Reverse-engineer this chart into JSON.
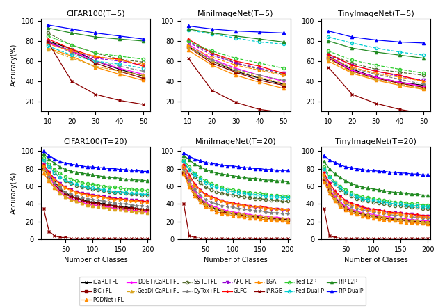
{
  "titles_top": [
    "CIFAR100(T=5)",
    "MiniImageNet(T=5)",
    "TinyImageNet(T=5)"
  ],
  "titles_bottom": [
    "CIFAR100(T=20)",
    "MiniImageNet(T=20)",
    "TinyImageNet(T=20)"
  ],
  "xlabel": "Number of Classes",
  "ylabel": "Accuracy(%)",
  "xticks_top": [
    10,
    20,
    30,
    40,
    50
  ],
  "xticks_bottom": [
    50,
    100,
    150,
    200
  ],
  "methods": [
    "iCaRL+FL",
    "BIC+FL",
    "PODNet+FL",
    "DDE+iCaRL+FL",
    "GeoDI-CaRL+FL",
    "SS-IL+FL",
    "DyTox+FL",
    "AFC-FL",
    "GLFC",
    "LGA",
    "iARGE",
    "Fed-L2P",
    "Fed-Dual P",
    "PIP-L2P",
    "PIP-DualP"
  ],
  "method_styles": {
    "iCaRL+FL": {
      "color": "#000000",
      "marker": "x",
      "ls": "-",
      "mfc": "none"
    },
    "BIC+FL": {
      "color": "#8B0000",
      "marker": "s",
      "ls": "-",
      "mfc": "#8B0000"
    },
    "PODNet+FL": {
      "color": "#FF8C00",
      "marker": "^",
      "ls": "-",
      "mfc": "#FF8C00"
    },
    "DDE+iCaRL+FL": {
      "color": "#FF00FF",
      "marker": "+",
      "ls": "-",
      "mfc": "none"
    },
    "GeoDI-CaRL+FL": {
      "color": "#DAA520",
      "marker": "^",
      "ls": "--",
      "mfc": "#DAA520"
    },
    "SS-IL+FL": {
      "color": "#556B2F",
      "marker": "o",
      "ls": "--",
      "mfc": "none"
    },
    "DyTox+FL": {
      "color": "#808080",
      "marker": "*",
      "ls": "--",
      "mfc": "#808080"
    },
    "AFC-FL": {
      "color": "#9400D3",
      "marker": "v",
      "ls": "--",
      "mfc": "none"
    },
    "GLFC": {
      "color": "#FF0000",
      "marker": "+",
      "ls": "-",
      "mfc": "none"
    },
    "LGA": {
      "color": "#FF8C00",
      "marker": ">",
      "ls": "--",
      "mfc": "none"
    },
    "iARGE": {
      "color": "#8B0000",
      "marker": "x",
      "ls": "-",
      "mfc": "none"
    },
    "Fed-L2P": {
      "color": "#32CD32",
      "marker": "o",
      "ls": "--",
      "mfc": "none"
    },
    "Fed-Dual P": {
      "color": "#00CED1",
      "marker": "o",
      "ls": "--",
      "mfc": "none"
    },
    "PIP-L2P": {
      "color": "#228B22",
      "marker": "^",
      "ls": "-",
      "mfc": "#228B22"
    },
    "PIP-DualP": {
      "color": "#0000FF",
      "marker": "^",
      "ls": "-",
      "mfc": "#0000FF"
    }
  },
  "top_data": {
    "CIFAR100": {
      "iCaRL+FL": [
        80,
        72,
        60,
        52,
        45
      ],
      "BIC+FL": [
        79,
        70,
        58,
        50,
        43
      ],
      "PODNet+FL": [
        73,
        65,
        54,
        47,
        41
      ],
      "DDE+iCaRL+FL": [
        78,
        70,
        60,
        53,
        47
      ],
      "GeoDI-CaRL+FL": [
        72,
        63,
        55,
        50,
        46
      ],
      "SS-IL+FL": [
        88,
        76,
        68,
        62,
        59
      ],
      "DyTox+FL": [
        80,
        68,
        60,
        55,
        50
      ],
      "AFC-FL": [
        79,
        70,
        63,
        60,
        56
      ],
      "GLFC": [
        82,
        72,
        64,
        62,
        55
      ],
      "LGA": [
        77,
        70,
        65,
        61,
        57
      ],
      "iARGE": [
        79,
        40,
        27,
        21,
        17
      ],
      "Fed-L2P": [
        85,
        76,
        68,
        65,
        62
      ],
      "Fed-Dual P": [
        75,
        66,
        60,
        57,
        53
      ],
      "PIP-L2P": [
        93,
        88,
        84,
        82,
        80
      ],
      "PIP-DualP": [
        96,
        92,
        88,
        85,
        82
      ]
    },
    "MiniImageNet": {
      "iCaRL+FL": [
        75,
        60,
        50,
        43,
        37
      ],
      "BIC+FL": [
        74,
        58,
        49,
        41,
        36
      ],
      "PODNet+FL": [
        71,
        56,
        46,
        39,
        33
      ],
      "DDE+iCaRL+FL": [
        77,
        62,
        53,
        46,
        40
      ],
      "GeoDI-CaRL+FL": [
        74,
        60,
        51,
        44,
        38
      ],
      "SS-IL+FL": [
        80,
        68,
        58,
        52,
        47
      ],
      "DyTox+FL": [
        75,
        61,
        52,
        46,
        41
      ],
      "AFC-FL": [
        79,
        66,
        58,
        53,
        48
      ],
      "GLFC": [
        82,
        68,
        60,
        55,
        48
      ],
      "LGA": [
        75,
        64,
        56,
        51,
        46
      ],
      "iARGE": [
        63,
        31,
        19,
        12,
        9
      ],
      "Fed-L2P": [
        80,
        70,
        63,
        58,
        53
      ],
      "Fed-Dual P": [
        91,
        87,
        83,
        79,
        77
      ],
      "PIP-L2P": [
        92,
        88,
        85,
        82,
        79
      ],
      "PIP-DualP": [
        95,
        92,
        90,
        89,
        88
      ]
    },
    "TinyImageNet": {
      "iCaRL+FL": [
        65,
        52,
        44,
        39,
        36
      ],
      "BIC+FL": [
        63,
        50,
        43,
        38,
        34
      ],
      "PODNet+FL": [
        60,
        48,
        41,
        36,
        32
      ],
      "DDE+iCaRL+FL": [
        64,
        51,
        44,
        39,
        35
      ],
      "GeoDI-CaRL+FL": [
        62,
        49,
        42,
        37,
        33
      ],
      "SS-IL+FL": [
        67,
        58,
        52,
        49,
        46
      ],
      "DyTox+FL": [
        64,
        53,
        47,
        42,
        37
      ],
      "AFC-FL": [
        66,
        56,
        50,
        45,
        41
      ],
      "GLFC": [
        67,
        56,
        50,
        46,
        40
      ],
      "LGA": [
        64,
        54,
        48,
        44,
        40
      ],
      "iARGE": [
        54,
        27,
        18,
        12,
        8
      ],
      "Fed-L2P": [
        70,
        61,
        56,
        52,
        48
      ],
      "Fed-Dual P": [
        84,
        78,
        73,
        69,
        66
      ],
      "PIP-L2P": [
        80,
        73,
        69,
        66,
        63
      ],
      "PIP-DualP": [
        90,
        84,
        81,
        79,
        78
      ]
    }
  },
  "bottom_xvals": [
    10,
    20,
    30,
    40,
    50,
    60,
    70,
    80,
    90,
    100,
    110,
    120,
    130,
    140,
    150,
    160,
    170,
    180,
    190,
    200
  ],
  "bottom_data": {
    "CIFAR100": {
      "iCaRL+FL": [
        82,
        74,
        65,
        58,
        53,
        49,
        47,
        45,
        43,
        42,
        41,
        40,
        39,
        38,
        37,
        36,
        36,
        35,
        34,
        34
      ],
      "BIC+FL": [
        80,
        71,
        62,
        56,
        51,
        48,
        46,
        44,
        42,
        41,
        40,
        39,
        38,
        37,
        36,
        35,
        35,
        34,
        33,
        33
      ],
      "PODNet+FL": [
        75,
        66,
        58,
        52,
        48,
        45,
        43,
        41,
        40,
        39,
        38,
        37,
        36,
        35,
        34,
        33,
        33,
        32,
        32,
        31
      ],
      "DDE+iCaRL+FL": [
        84,
        72,
        61,
        54,
        49,
        46,
        44,
        42,
        40,
        39,
        38,
        37,
        36,
        35,
        34,
        33,
        33,
        32,
        31,
        31
      ],
      "GeoDI-CaRL+FL": [
        80,
        68,
        59,
        53,
        48,
        45,
        43,
        41,
        39,
        38,
        37,
        36,
        35,
        34,
        34,
        33,
        32,
        31,
        31,
        30
      ],
      "SS-IL+FL": [
        90,
        83,
        76,
        70,
        66,
        63,
        61,
        59,
        58,
        57,
        56,
        55,
        54,
        53,
        53,
        52,
        51,
        51,
        50,
        50
      ],
      "DyTox+FL": [
        82,
        72,
        64,
        58,
        54,
        51,
        49,
        47,
        46,
        45,
        44,
        43,
        42,
        41,
        40,
        40,
        39,
        38,
        38,
        37
      ],
      "AFC-FL": [
        85,
        76,
        69,
        63,
        59,
        56,
        54,
        52,
        51,
        50,
        49,
        48,
        47,
        46,
        46,
        45,
        44,
        44,
        43,
        43
      ],
      "GLFC": [
        85,
        76,
        68,
        63,
        59,
        56,
        54,
        52,
        51,
        50,
        49,
        48,
        47,
        46,
        46,
        45,
        44,
        44,
        43,
        43
      ],
      "LGA": [
        83,
        74,
        67,
        62,
        58,
        55,
        53,
        51,
        50,
        49,
        48,
        47,
        46,
        45,
        45,
        44,
        43,
        43,
        42,
        42
      ],
      "iARGE": [
        35,
        9,
        4,
        2,
        2,
        1,
        1,
        1,
        1,
        1,
        1,
        1,
        1,
        1,
        1,
        1,
        1,
        1,
        1,
        1
      ],
      "Fed-L2P": [
        92,
        85,
        79,
        75,
        71,
        68,
        66,
        64,
        63,
        62,
        61,
        60,
        59,
        59,
        58,
        57,
        57,
        56,
        56,
        55
      ],
      "Fed-Dual P": [
        90,
        82,
        75,
        70,
        67,
        64,
        62,
        60,
        59,
        58,
        57,
        56,
        55,
        54,
        54,
        53,
        52,
        52,
        51,
        51
      ],
      "PIP-L2P": [
        97,
        91,
        86,
        82,
        79,
        77,
        76,
        75,
        74,
        73,
        72,
        71,
        70,
        70,
        69,
        68,
        68,
        67,
        67,
        66
      ],
      "PIP-DualP": [
        100,
        95,
        91,
        88,
        86,
        85,
        84,
        83,
        82,
        82,
        81,
        81,
        80,
        80,
        79,
        79,
        78,
        78,
        77,
        77
      ]
    },
    "MiniImageNet": {
      "iCaRL+FL": [
        78,
        64,
        53,
        46,
        40,
        37,
        34,
        32,
        30,
        29,
        28,
        27,
        26,
        26,
        25,
        24,
        24,
        23,
        23,
        22
      ],
      "BIC+FL": [
        76,
        62,
        51,
        44,
        39,
        36,
        33,
        31,
        30,
        29,
        28,
        27,
        26,
        25,
        25,
        24,
        23,
        23,
        22,
        22
      ],
      "PODNet+FL": [
        74,
        59,
        49,
        42,
        37,
        34,
        31,
        29,
        28,
        27,
        26,
        25,
        24,
        24,
        23,
        22,
        22,
        21,
        21,
        20
      ],
      "DDE+iCaRL+FL": [
        80,
        65,
        54,
        47,
        42,
        38,
        36,
        34,
        32,
        31,
        30,
        29,
        28,
        27,
        27,
        26,
        25,
        25,
        24,
        24
      ],
      "GeoDI-CaRL+FL": [
        78,
        63,
        52,
        45,
        40,
        37,
        35,
        33,
        31,
        30,
        29,
        28,
        27,
        27,
        26,
        25,
        25,
        24,
        24,
        23
      ],
      "SS-IL+FL": [
        88,
        78,
        70,
        64,
        59,
        56,
        54,
        52,
        51,
        50,
        49,
        48,
        47,
        46,
        46,
        45,
        44,
        44,
        43,
        43
      ],
      "DyTox+FL": [
        80,
        67,
        57,
        50,
        45,
        42,
        40,
        38,
        37,
        36,
        35,
        34,
        33,
        32,
        32,
        31,
        30,
        30,
        29,
        29
      ],
      "AFC-FL": [
        82,
        71,
        61,
        55,
        50,
        47,
        45,
        43,
        41,
        40,
        39,
        38,
        37,
        36,
        36,
        35,
        34,
        34,
        33,
        33
      ],
      "GLFC": [
        85,
        73,
        63,
        56,
        51,
        48,
        46,
        44,
        42,
        41,
        40,
        39,
        38,
        37,
        37,
        36,
        35,
        35,
        34,
        34
      ],
      "LGA": [
        82,
        70,
        61,
        55,
        50,
        47,
        45,
        43,
        41,
        40,
        39,
        38,
        37,
        37,
        36,
        35,
        35,
        34,
        34,
        33
      ],
      "iARGE": [
        40,
        4,
        2,
        1,
        1,
        1,
        1,
        1,
        1,
        1,
        1,
        1,
        1,
        1,
        1,
        1,
        1,
        1,
        1,
        1
      ],
      "Fed-L2P": [
        90,
        82,
        75,
        70,
        66,
        63,
        61,
        59,
        57,
        56,
        55,
        54,
        53,
        52,
        52,
        51,
        50,
        50,
        49,
        49
      ],
      "Fed-Dual P": [
        88,
        79,
        73,
        68,
        64,
        61,
        59,
        57,
        55,
        54,
        53,
        52,
        51,
        50,
        50,
        49,
        48,
        48,
        47,
        47
      ],
      "PIP-L2P": [
        95,
        90,
        85,
        82,
        79,
        77,
        75,
        74,
        73,
        72,
        71,
        70,
        69,
        69,
        68,
        67,
        67,
        66,
        66,
        65
      ],
      "PIP-DualP": [
        98,
        94,
        91,
        89,
        87,
        86,
        85,
        84,
        83,
        83,
        82,
        81,
        81,
        80,
        80,
        79,
        79,
        78,
        78,
        78
      ]
    },
    "TinyImageNet": {
      "iCaRL+FL": [
        70,
        57,
        47,
        41,
        36,
        33,
        31,
        29,
        27,
        26,
        25,
        24,
        23,
        23,
        22,
        21,
        21,
        20,
        20,
        19
      ],
      "BIC+FL": [
        68,
        55,
        45,
        39,
        35,
        32,
        30,
        28,
        27,
        26,
        25,
        24,
        23,
        22,
        22,
        21,
        20,
        20,
        19,
        19
      ],
      "PODNet+FL": [
        65,
        52,
        43,
        37,
        33,
        30,
        28,
        26,
        25,
        24,
        23,
        22,
        21,
        21,
        20,
        19,
        19,
        18,
        18,
        17
      ],
      "DDE+iCaRL+FL": [
        72,
        58,
        48,
        42,
        37,
        34,
        32,
        30,
        29,
        28,
        27,
        26,
        25,
        24,
        24,
        23,
        22,
        22,
        21,
        21
      ],
      "GeoDI-CaRL+FL": [
        70,
        56,
        46,
        40,
        36,
        33,
        31,
        29,
        28,
        27,
        26,
        25,
        24,
        23,
        23,
        22,
        21,
        21,
        20,
        20
      ],
      "SS-IL+FL": [
        80,
        70,
        62,
        56,
        52,
        49,
        46,
        44,
        43,
        42,
        41,
        40,
        39,
        38,
        38,
        37,
        36,
        36,
        35,
        35
      ],
      "DyTox+FL": [
        72,
        60,
        51,
        45,
        40,
        37,
        35,
        33,
        32,
        31,
        30,
        29,
        28,
        27,
        27,
        26,
        25,
        25,
        24,
        24
      ],
      "AFC-FL": [
        75,
        63,
        54,
        48,
        43,
        40,
        38,
        36,
        34,
        33,
        32,
        31,
        30,
        30,
        29,
        28,
        28,
        27,
        26,
        26
      ],
      "GLFC": [
        76,
        64,
        55,
        49,
        44,
        41,
        39,
        37,
        35,
        34,
        33,
        32,
        31,
        30,
        30,
        29,
        28,
        28,
        27,
        27
      ],
      "LGA": [
        73,
        61,
        52,
        46,
        42,
        39,
        37,
        35,
        33,
        32,
        31,
        30,
        29,
        29,
        28,
        27,
        27,
        26,
        25,
        25
      ],
      "iARGE": [
        35,
        4,
        2,
        1,
        1,
        1,
        1,
        1,
        1,
        1,
        1,
        1,
        1,
        1,
        1,
        1,
        1,
        1,
        1,
        1
      ],
      "Fed-L2P": [
        82,
        72,
        65,
        60,
        56,
        53,
        50,
        48,
        47,
        46,
        45,
        44,
        43,
        42,
        42,
        41,
        40,
        40,
        39,
        39
      ],
      "Fed-Dual P": [
        80,
        70,
        63,
        58,
        54,
        51,
        48,
        46,
        45,
        44,
        43,
        42,
        41,
        40,
        40,
        39,
        38,
        38,
        37,
        37
      ],
      "PIP-L2P": [
        88,
        80,
        74,
        70,
        66,
        63,
        61,
        59,
        58,
        57,
        56,
        55,
        54,
        53,
        53,
        52,
        51,
        51,
        50,
        50
      ],
      "PIP-DualP": [
        95,
        90,
        87,
        84,
        82,
        81,
        80,
        79,
        78,
        78,
        77,
        77,
        76,
        76,
        75,
        75,
        74,
        74,
        73,
        73
      ]
    }
  },
  "figsize": [
    6.4,
    4.43
  ]
}
